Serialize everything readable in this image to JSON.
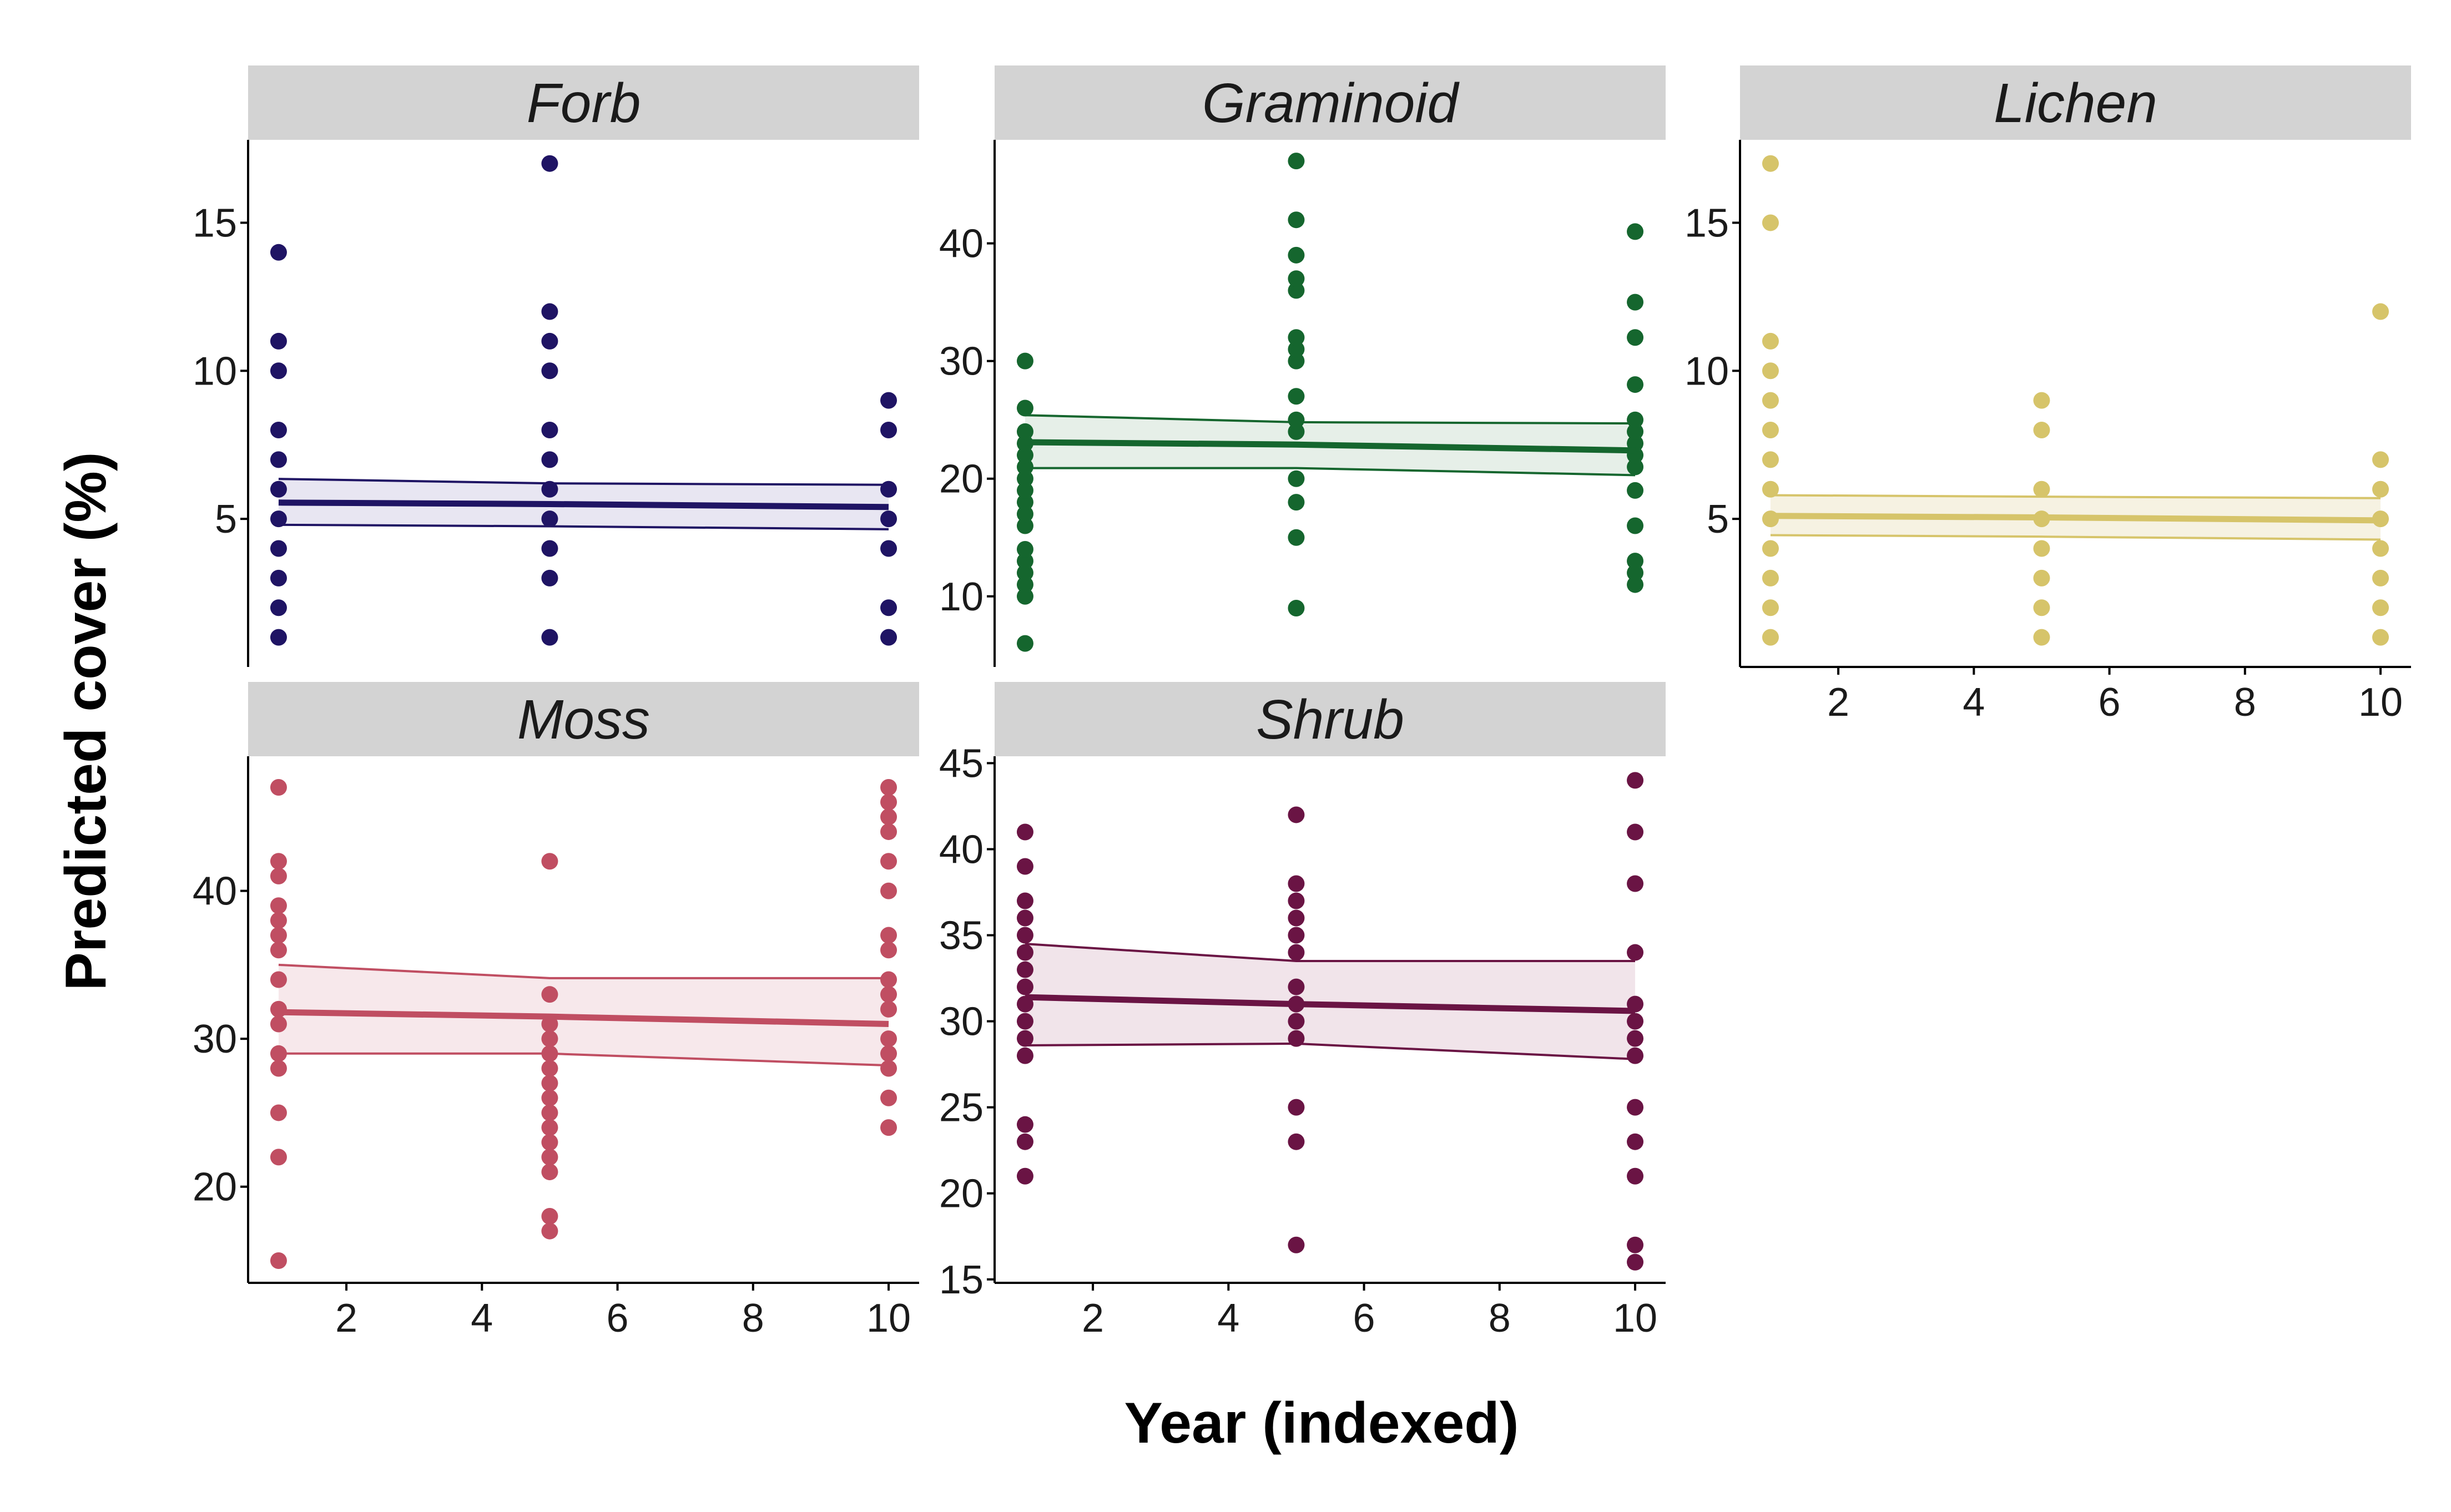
{
  "chart_data": {
    "type": "scatter",
    "xlabel": "Year (indexed)",
    "ylabel": "Predicted cover (%)",
    "grid": false,
    "legend": "none",
    "panels": [
      {
        "name": "Forb",
        "color": "#1f1464",
        "fill": "#e8e6f2",
        "xlim": [
          0.55,
          10.45
        ],
        "ylim": [
          0,
          17.8
        ],
        "xticks": [],
        "yticks": [
          5,
          10,
          15
        ],
        "points": [
          {
            "x": 1,
            "y": 1
          },
          {
            "x": 1,
            "y": 2
          },
          {
            "x": 1,
            "y": 3
          },
          {
            "x": 1,
            "y": 4
          },
          {
            "x": 1,
            "y": 5
          },
          {
            "x": 1,
            "y": 6
          },
          {
            "x": 1,
            "y": 7
          },
          {
            "x": 1,
            "y": 8
          },
          {
            "x": 1,
            "y": 10
          },
          {
            "x": 1,
            "y": 11
          },
          {
            "x": 1,
            "y": 14
          },
          {
            "x": 5,
            "y": 1
          },
          {
            "x": 5,
            "y": 3
          },
          {
            "x": 5,
            "y": 4
          },
          {
            "x": 5,
            "y": 5
          },
          {
            "x": 5,
            "y": 6
          },
          {
            "x": 5,
            "y": 7
          },
          {
            "x": 5,
            "y": 8
          },
          {
            "x": 5,
            "y": 10
          },
          {
            "x": 5,
            "y": 11
          },
          {
            "x": 5,
            "y": 12
          },
          {
            "x": 5,
            "y": 17
          },
          {
            "x": 10,
            "y": 1
          },
          {
            "x": 10,
            "y": 2
          },
          {
            "x": 10,
            "y": 4
          },
          {
            "x": 10,
            "y": 5
          },
          {
            "x": 10,
            "y": 6
          },
          {
            "x": 10,
            "y": 8
          },
          {
            "x": 10,
            "y": 9
          }
        ],
        "fit": {
          "x": [
            1,
            5,
            10
          ],
          "y": [
            5.55,
            5.5,
            5.4
          ],
          "lower": [
            4.8,
            4.75,
            4.65
          ],
          "upper": [
            6.35,
            6.2,
            6.15
          ]
        }
      },
      {
        "name": "Graminoid",
        "color": "#15662e",
        "fill": "#e6efe8",
        "xlim": [
          0.55,
          10.45
        ],
        "ylim": [
          4,
          48.8
        ],
        "xticks": [],
        "yticks": [
          10,
          20,
          30,
          40
        ],
        "points": [
          {
            "x": 1,
            "y": 6
          },
          {
            "x": 1,
            "y": 10
          },
          {
            "x": 1,
            "y": 11
          },
          {
            "x": 1,
            "y": 12
          },
          {
            "x": 1,
            "y": 13
          },
          {
            "x": 1,
            "y": 14
          },
          {
            "x": 1,
            "y": 16
          },
          {
            "x": 1,
            "y": 17
          },
          {
            "x": 1,
            "y": 18
          },
          {
            "x": 1,
            "y": 19
          },
          {
            "x": 1,
            "y": 20
          },
          {
            "x": 1,
            "y": 21
          },
          {
            "x": 1,
            "y": 22
          },
          {
            "x": 1,
            "y": 23
          },
          {
            "x": 1,
            "y": 24
          },
          {
            "x": 1,
            "y": 26
          },
          {
            "x": 1,
            "y": 30
          },
          {
            "x": 5,
            "y": 9
          },
          {
            "x": 5,
            "y": 15
          },
          {
            "x": 5,
            "y": 18
          },
          {
            "x": 5,
            "y": 20
          },
          {
            "x": 5,
            "y": 24
          },
          {
            "x": 5,
            "y": 25
          },
          {
            "x": 5,
            "y": 27
          },
          {
            "x": 5,
            "y": 30
          },
          {
            "x": 5,
            "y": 31
          },
          {
            "x": 5,
            "y": 32
          },
          {
            "x": 5,
            "y": 36
          },
          {
            "x": 5,
            "y": 37
          },
          {
            "x": 5,
            "y": 39
          },
          {
            "x": 5,
            "y": 42
          },
          {
            "x": 5,
            "y": 47
          },
          {
            "x": 10,
            "y": 11
          },
          {
            "x": 10,
            "y": 12
          },
          {
            "x": 10,
            "y": 13
          },
          {
            "x": 10,
            "y": 16
          },
          {
            "x": 10,
            "y": 19
          },
          {
            "x": 10,
            "y": 21
          },
          {
            "x": 10,
            "y": 22
          },
          {
            "x": 10,
            "y": 23
          },
          {
            "x": 10,
            "y": 24
          },
          {
            "x": 10,
            "y": 25
          },
          {
            "x": 10,
            "y": 28
          },
          {
            "x": 10,
            "y": 32
          },
          {
            "x": 10,
            "y": 35
          },
          {
            "x": 10,
            "y": 41
          }
        ],
        "fit": {
          "x": [
            1,
            5,
            10
          ],
          "y": [
            23.1,
            22.9,
            22.4
          ],
          "lower": [
            20.9,
            20.9,
            20.3
          ],
          "upper": [
            25.4,
            24.8,
            24.7
          ]
        }
      },
      {
        "name": "Lichen",
        "color": "#d6c46a",
        "fill": "#f6f2e2",
        "xlim": [
          0.55,
          10.45
        ],
        "ylim": [
          0,
          17.8
        ],
        "xticks": [
          2,
          4,
          6,
          8,
          10
        ],
        "yticks": [
          5,
          10,
          15
        ],
        "points": [
          {
            "x": 1,
            "y": 1
          },
          {
            "x": 1,
            "y": 2
          },
          {
            "x": 1,
            "y": 3
          },
          {
            "x": 1,
            "y": 4
          },
          {
            "x": 1,
            "y": 5
          },
          {
            "x": 1,
            "y": 6
          },
          {
            "x": 1,
            "y": 7
          },
          {
            "x": 1,
            "y": 8
          },
          {
            "x": 1,
            "y": 9
          },
          {
            "x": 1,
            "y": 10
          },
          {
            "x": 1,
            "y": 11
          },
          {
            "x": 1,
            "y": 15
          },
          {
            "x": 1,
            "y": 17
          },
          {
            "x": 5,
            "y": 1
          },
          {
            "x": 5,
            "y": 2
          },
          {
            "x": 5,
            "y": 3
          },
          {
            "x": 5,
            "y": 4
          },
          {
            "x": 5,
            "y": 5
          },
          {
            "x": 5,
            "y": 6
          },
          {
            "x": 5,
            "y": 8
          },
          {
            "x": 5,
            "y": 9
          },
          {
            "x": 10,
            "y": 1
          },
          {
            "x": 10,
            "y": 2
          },
          {
            "x": 10,
            "y": 3
          },
          {
            "x": 10,
            "y": 4
          },
          {
            "x": 10,
            "y": 5
          },
          {
            "x": 10,
            "y": 6
          },
          {
            "x": 10,
            "y": 7
          },
          {
            "x": 10,
            "y": 12
          }
        ],
        "fit": {
          "x": [
            1,
            5,
            10
          ],
          "y": [
            5.1,
            5.05,
            4.95
          ],
          "lower": [
            4.45,
            4.4,
            4.3
          ],
          "upper": [
            5.8,
            5.75,
            5.7
          ]
        }
      },
      {
        "name": "Moss",
        "color": "#c04e62",
        "fill": "#f7e8eb",
        "xlim": [
          0.55,
          10.45
        ],
        "ylim": [
          13.5,
          49.1
        ],
        "xticks": [
          2,
          4,
          6,
          8,
          10
        ],
        "yticks": [
          20,
          30,
          40
        ],
        "points": [
          {
            "x": 1,
            "y": 15
          },
          {
            "x": 1,
            "y": 22
          },
          {
            "x": 1,
            "y": 25
          },
          {
            "x": 1,
            "y": 28
          },
          {
            "x": 1,
            "y": 29
          },
          {
            "x": 1,
            "y": 31
          },
          {
            "x": 1,
            "y": 32
          },
          {
            "x": 1,
            "y": 34
          },
          {
            "x": 1,
            "y": 36
          },
          {
            "x": 1,
            "y": 37
          },
          {
            "x": 1,
            "y": 38
          },
          {
            "x": 1,
            "y": 39
          },
          {
            "x": 1,
            "y": 41
          },
          {
            "x": 1,
            "y": 42
          },
          {
            "x": 1,
            "y": 47
          },
          {
            "x": 5,
            "y": 17
          },
          {
            "x": 5,
            "y": 18
          },
          {
            "x": 5,
            "y": 21
          },
          {
            "x": 5,
            "y": 22
          },
          {
            "x": 5,
            "y": 23
          },
          {
            "x": 5,
            "y": 24
          },
          {
            "x": 5,
            "y": 25
          },
          {
            "x": 5,
            "y": 26
          },
          {
            "x": 5,
            "y": 27
          },
          {
            "x": 5,
            "y": 28
          },
          {
            "x": 5,
            "y": 29
          },
          {
            "x": 5,
            "y": 30
          },
          {
            "x": 5,
            "y": 31
          },
          {
            "x": 5,
            "y": 33
          },
          {
            "x": 5,
            "y": 42
          },
          {
            "x": 10,
            "y": 24
          },
          {
            "x": 10,
            "y": 26
          },
          {
            "x": 10,
            "y": 28
          },
          {
            "x": 10,
            "y": 29
          },
          {
            "x": 10,
            "y": 30
          },
          {
            "x": 10,
            "y": 32
          },
          {
            "x": 10,
            "y": 33
          },
          {
            "x": 10,
            "y": 34
          },
          {
            "x": 10,
            "y": 36
          },
          {
            "x": 10,
            "y": 37
          },
          {
            "x": 10,
            "y": 40
          },
          {
            "x": 10,
            "y": 42
          },
          {
            "x": 10,
            "y": 44
          },
          {
            "x": 10,
            "y": 45
          },
          {
            "x": 10,
            "y": 46
          },
          {
            "x": 10,
            "y": 47
          }
        ],
        "fit": {
          "x": [
            1,
            5,
            10
          ],
          "y": [
            31.8,
            31.5,
            31.0
          ],
          "lower": [
            29.0,
            29.0,
            28.2
          ],
          "upper": [
            35.0,
            34.1,
            34.1
          ]
        }
      },
      {
        "name": "Shrub",
        "color": "#6a1444",
        "fill": "#f1e4ea",
        "xlim": [
          0.55,
          10.45
        ],
        "ylim": [
          14.8,
          45.4
        ],
        "xticks": [
          2,
          4,
          6,
          8,
          10
        ],
        "yticks": [
          15,
          20,
          25,
          30,
          35,
          40,
          45
        ],
        "points": [
          {
            "x": 1,
            "y": 21
          },
          {
            "x": 1,
            "y": 23
          },
          {
            "x": 1,
            "y": 24
          },
          {
            "x": 1,
            "y": 28
          },
          {
            "x": 1,
            "y": 29
          },
          {
            "x": 1,
            "y": 30
          },
          {
            "x": 1,
            "y": 31
          },
          {
            "x": 1,
            "y": 32
          },
          {
            "x": 1,
            "y": 33
          },
          {
            "x": 1,
            "y": 34
          },
          {
            "x": 1,
            "y": 35
          },
          {
            "x": 1,
            "y": 36
          },
          {
            "x": 1,
            "y": 37
          },
          {
            "x": 1,
            "y": 39
          },
          {
            "x": 1,
            "y": 41
          },
          {
            "x": 5,
            "y": 17
          },
          {
            "x": 5,
            "y": 23
          },
          {
            "x": 5,
            "y": 25
          },
          {
            "x": 5,
            "y": 29
          },
          {
            "x": 5,
            "y": 30
          },
          {
            "x": 5,
            "y": 31
          },
          {
            "x": 5,
            "y": 32
          },
          {
            "x": 5,
            "y": 34
          },
          {
            "x": 5,
            "y": 35
          },
          {
            "x": 5,
            "y": 36
          },
          {
            "x": 5,
            "y": 37
          },
          {
            "x": 5,
            "y": 38
          },
          {
            "x": 5,
            "y": 42
          },
          {
            "x": 10,
            "y": 16
          },
          {
            "x": 10,
            "y": 17
          },
          {
            "x": 10,
            "y": 21
          },
          {
            "x": 10,
            "y": 23
          },
          {
            "x": 10,
            "y": 25
          },
          {
            "x": 10,
            "y": 28
          },
          {
            "x": 10,
            "y": 29
          },
          {
            "x": 10,
            "y": 30
          },
          {
            "x": 10,
            "y": 31
          },
          {
            "x": 10,
            "y": 34
          },
          {
            "x": 10,
            "y": 38
          },
          {
            "x": 10,
            "y": 41
          },
          {
            "x": 10,
            "y": 44
          }
        ],
        "fit": {
          "x": [
            1,
            5,
            10
          ],
          "y": [
            31.4,
            31.0,
            30.6
          ],
          "lower": [
            28.6,
            28.7,
            27.8
          ],
          "upper": [
            34.5,
            33.5,
            33.5
          ]
        }
      }
    ]
  }
}
